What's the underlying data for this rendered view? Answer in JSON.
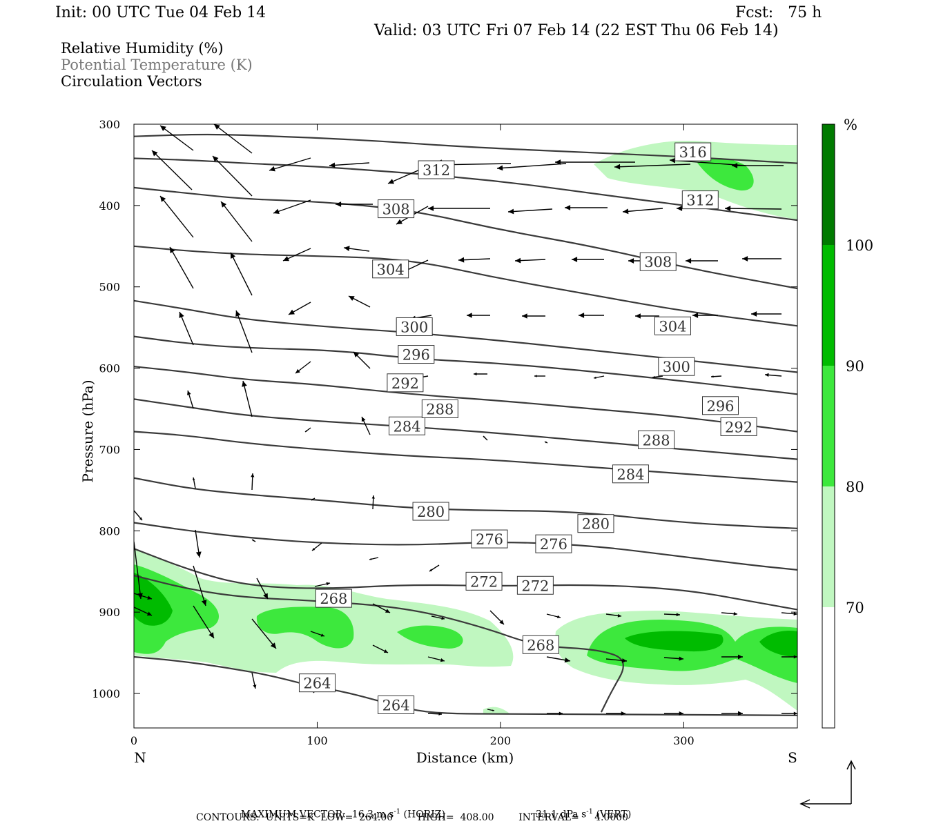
{
  "header": {
    "init": "Init: 00 UTC Tue 04 Feb 14",
    "fcst": "Fcst:   75 h",
    "valid": "Valid: 03 UTC Fri 07 Feb 14 (22 EST Thu 06 Feb 14)"
  },
  "fields": [
    {
      "label": "Relative Humidity (%)",
      "color": "#000000"
    },
    {
      "label": "Potential Temperature (K)",
      "color": "#777777"
    },
    {
      "label": "Circulation Vectors",
      "color": "#000000"
    }
  ],
  "colorbar": {
    "unit": "%",
    "levels": [
      70,
      80,
      90,
      100
    ],
    "colors": [
      "#ffffff",
      "#c0f7c0",
      "#3de83d",
      "#00bb00",
      "#007a00"
    ]
  },
  "footer": {
    "max_label": "MAXIMUM VECTOR:  16.3 m s",
    "max_horiz_unit": "-1",
    "max_horiz_tail": " (HORIZ)",
    "max_vert": "31.1 dPa s",
    "max_vert_unit": "-1",
    "max_vert_tail": " (VERT)",
    "contours": "CONTOURS:  UNITS=K  LOW=  264.00        HIGH=  408.00        INTERVAL=     4.0000"
  },
  "chart_data": {
    "type": "cross-section",
    "xlabel": "Distance (km)",
    "ylabel": "Pressure (hPa)",
    "xlim": [
      0,
      362
    ],
    "ylim": [
      1040,
      300
    ],
    "x_ticks": [
      0,
      100,
      200,
      300
    ],
    "y_ticks": [
      300,
      400,
      500,
      600,
      700,
      800,
      900,
      1000
    ],
    "left_end_label": "N",
    "right_end_label": "S",
    "theta_contours": [
      {
        "value": 264,
        "points": [
          [
            0,
            955
          ],
          [
            25,
            960
          ],
          [
            50,
            968
          ],
          [
            75,
            978
          ],
          [
            95,
            990
          ],
          [
            115,
            998
          ],
          [
            135,
            1010
          ],
          [
            155,
            1022
          ],
          [
            175,
            1025
          ],
          [
            200,
            1025
          ],
          [
            362,
            1027
          ]
        ],
        "labels": [
          [
            100,
            987
          ],
          [
            143,
            1014
          ]
        ]
      },
      {
        "value": 268,
        "points": [
          [
            0,
            855
          ],
          [
            30,
            872
          ],
          [
            60,
            882
          ],
          [
            100,
            886
          ],
          [
            150,
            895
          ],
          [
            190,
            918
          ],
          [
            220,
            942
          ],
          [
            255,
            946
          ],
          [
            270,
            960
          ],
          [
            260,
            1000
          ],
          [
            255,
            1023
          ]
        ],
        "labels": [
          [
            109,
            883
          ],
          [
            222,
            940
          ]
        ]
      },
      {
        "value": 272,
        "points": [
          [
            0,
            822
          ],
          [
            30,
            848
          ],
          [
            60,
            867
          ],
          [
            100,
            872
          ],
          [
            150,
            866
          ],
          [
            200,
            868
          ],
          [
            250,
            866
          ],
          [
            300,
            872
          ],
          [
            340,
            888
          ],
          [
            362,
            897
          ]
        ],
        "labels": [
          [
            191,
            862
          ],
          [
            219,
            867
          ]
        ]
      },
      {
        "value": 276,
        "points": [
          [
            0,
            790
          ],
          [
            30,
            800
          ],
          [
            60,
            808
          ],
          [
            100,
            815
          ],
          [
            150,
            818
          ],
          [
            200,
            813
          ],
          [
            250,
            818
          ],
          [
            300,
            832
          ],
          [
            340,
            843
          ],
          [
            362,
            848
          ]
        ],
        "labels": [
          [
            194,
            810
          ],
          [
            229,
            816
          ]
        ]
      },
      {
        "value": 280,
        "points": [
          [
            0,
            735
          ],
          [
            30,
            748
          ],
          [
            60,
            755
          ],
          [
            100,
            762
          ],
          [
            150,
            772
          ],
          [
            190,
            775
          ],
          [
            240,
            776
          ],
          [
            300,
            790
          ],
          [
            340,
            795
          ],
          [
            362,
            797
          ]
        ],
        "labels": [
          [
            162,
            776
          ],
          [
            252,
            791
          ]
        ]
      },
      {
        "value": 284,
        "points": [
          [
            0,
            678
          ],
          [
            30,
            683
          ],
          [
            60,
            692
          ],
          [
            100,
            700
          ],
          [
            150,
            708
          ],
          [
            190,
            712
          ],
          [
            240,
            720
          ],
          [
            300,
            730
          ],
          [
            362,
            740
          ]
        ],
        "labels": [
          [
            149,
            671
          ],
          [
            271,
            730
          ]
        ]
      },
      {
        "value": 288,
        "points": [
          [
            0,
            638
          ],
          [
            30,
            648
          ],
          [
            60,
            658
          ],
          [
            100,
            665
          ],
          [
            150,
            672
          ],
          [
            200,
            680
          ],
          [
            250,
            690
          ],
          [
            300,
            700
          ],
          [
            362,
            712
          ]
        ],
        "labels": [
          [
            167,
            650
          ],
          [
            285,
            688
          ]
        ]
      },
      {
        "value": 292,
        "points": [
          [
            0,
            598
          ],
          [
            30,
            605
          ],
          [
            60,
            614
          ],
          [
            100,
            620
          ],
          [
            150,
            632
          ],
          [
            200,
            640
          ],
          [
            250,
            650
          ],
          [
            300,
            660
          ],
          [
            362,
            678
          ]
        ],
        "labels": [
          [
            148,
            618
          ],
          [
            330,
            672
          ]
        ]
      },
      {
        "value": 296,
        "points": [
          [
            0,
            561
          ],
          [
            30,
            570
          ],
          [
            60,
            575
          ],
          [
            110,
            578
          ],
          [
            150,
            588
          ],
          [
            200,
            594
          ],
          [
            250,
            604
          ],
          [
            300,
            616
          ],
          [
            362,
            632
          ]
        ],
        "labels": [
          [
            154,
            583
          ],
          [
            320,
            646
          ]
        ]
      },
      {
        "value": 300,
        "points": [
          [
            0,
            517
          ],
          [
            30,
            528
          ],
          [
            60,
            540
          ],
          [
            110,
            550
          ],
          [
            150,
            556
          ],
          [
            200,
            566
          ],
          [
            250,
            578
          ],
          [
            300,
            590
          ],
          [
            362,
            605
          ]
        ],
        "labels": [
          [
            153,
            549
          ],
          [
            296,
            598
          ]
        ]
      },
      {
        "value": 304,
        "points": [
          [
            0,
            450
          ],
          [
            30,
            456
          ],
          [
            60,
            460
          ],
          [
            100,
            462
          ],
          [
            150,
            466
          ],
          [
            200,
            490
          ],
          [
            250,
            510
          ],
          [
            300,
            530
          ],
          [
            362,
            548
          ]
        ],
        "labels": [
          [
            140,
            478
          ],
          [
            294,
            548
          ]
        ]
      },
      {
        "value": 308,
        "points": [
          [
            0,
            378
          ],
          [
            30,
            385
          ],
          [
            60,
            392
          ],
          [
            100,
            395
          ],
          [
            150,
            405
          ],
          [
            200,
            430
          ],
          [
            250,
            450
          ],
          [
            300,
            476
          ],
          [
            362,
            502
          ]
        ],
        "labels": [
          [
            143,
            404
          ],
          [
            286,
            469
          ]
        ]
      },
      {
        "value": 312,
        "points": [
          [
            0,
            342
          ],
          [
            30,
            344
          ],
          [
            60,
            348
          ],
          [
            100,
            352
          ],
          [
            150,
            360
          ],
          [
            200,
            370
          ],
          [
            250,
            385
          ],
          [
            300,
            400
          ],
          [
            362,
            418
          ]
        ],
        "labels": [
          [
            165,
            356
          ],
          [
            309,
            393
          ]
        ]
      },
      {
        "value": 316,
        "points": [
          [
            0,
            315
          ],
          [
            40,
            312
          ],
          [
            80,
            315
          ],
          [
            130,
            320
          ],
          [
            180,
            328
          ],
          [
            250,
            335
          ],
          [
            300,
            340
          ],
          [
            362,
            348
          ]
        ],
        "labels": [
          [
            305,
            334
          ]
        ]
      }
    ]
  }
}
